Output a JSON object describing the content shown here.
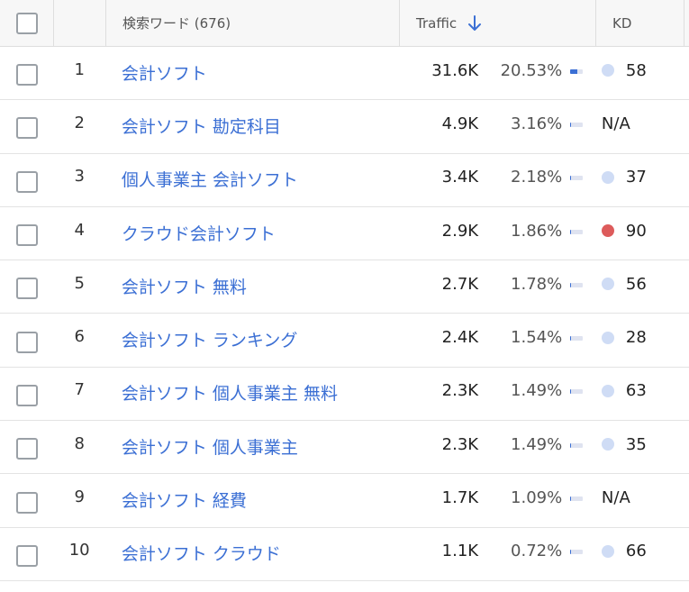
{
  "header": {
    "keyword_col": "検索ワード (676)",
    "traffic_col": "Traffic",
    "kd_col": "KD"
  },
  "colors": {
    "link": "#3b6fd4",
    "kd_low": "#cfdcf5",
    "kd_high": "#dd5b5b"
  },
  "rows": [
    {
      "num": "1",
      "keyword": "会計ソフト",
      "traffic": "31.6K",
      "pct": "20.53%",
      "share": 0.6,
      "kd": "58",
      "kd_level": "low"
    },
    {
      "num": "2",
      "keyword": "会計ソフト 勘定科目",
      "traffic": "4.9K",
      "pct": "3.16%",
      "share": 0.1,
      "kd": "N/A",
      "kd_level": "none"
    },
    {
      "num": "3",
      "keyword": "個人事業主 会計ソフト",
      "traffic": "3.4K",
      "pct": "2.18%",
      "share": 0.08,
      "kd": "37",
      "kd_level": "low"
    },
    {
      "num": "4",
      "keyword": "クラウド会計ソフト",
      "traffic": "2.9K",
      "pct": "1.86%",
      "share": 0.07,
      "kd": "90",
      "kd_level": "high"
    },
    {
      "num": "5",
      "keyword": "会計ソフト 無料",
      "traffic": "2.7K",
      "pct": "1.78%",
      "share": 0.07,
      "kd": "56",
      "kd_level": "low"
    },
    {
      "num": "6",
      "keyword": "会計ソフト ランキング",
      "traffic": "2.4K",
      "pct": "1.54%",
      "share": 0.06,
      "kd": "28",
      "kd_level": "low"
    },
    {
      "num": "7",
      "keyword": "会計ソフト 個人事業主 無料",
      "traffic": "2.3K",
      "pct": "1.49%",
      "share": 0.06,
      "kd": "63",
      "kd_level": "low"
    },
    {
      "num": "8",
      "keyword": "会計ソフト 個人事業主",
      "traffic": "2.3K",
      "pct": "1.49%",
      "share": 0.06,
      "kd": "35",
      "kd_level": "low"
    },
    {
      "num": "9",
      "keyword": "会計ソフト 経費",
      "traffic": "1.7K",
      "pct": "1.09%",
      "share": 0.05,
      "kd": "N/A",
      "kd_level": "none"
    },
    {
      "num": "10",
      "keyword": "会計ソフト クラウド",
      "traffic": "1.1K",
      "pct": "0.72%",
      "share": 0.04,
      "kd": "66",
      "kd_level": "low"
    }
  ]
}
